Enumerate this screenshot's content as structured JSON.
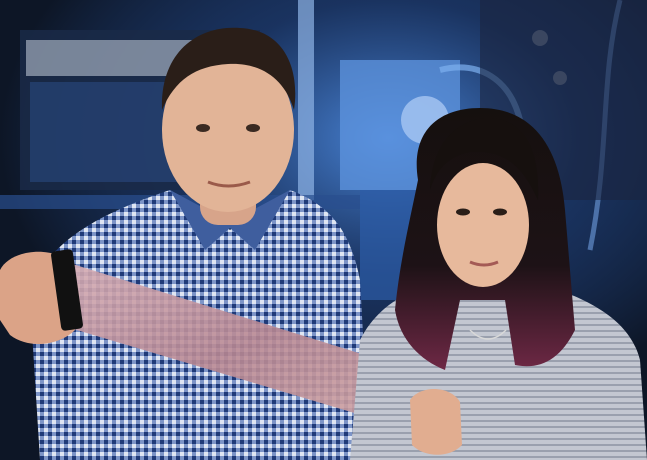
{
  "photo": {
    "equipment_label": "",
    "people": [
      {
        "role": "man-holding-film"
      },
      {
        "role": "woman-holding-film"
      }
    ],
    "object": "stretchable-film",
    "colors": {
      "background": "#0d1626",
      "lab_blue": "#3a7fd8",
      "shirt_check": "#2f4e8f",
      "film": "#c79aa3",
      "jacket": "#b8bcc8",
      "hair_dark": "#16100e",
      "hair_tint": "#7a2a4a",
      "skin": "#e2b497"
    }
  }
}
